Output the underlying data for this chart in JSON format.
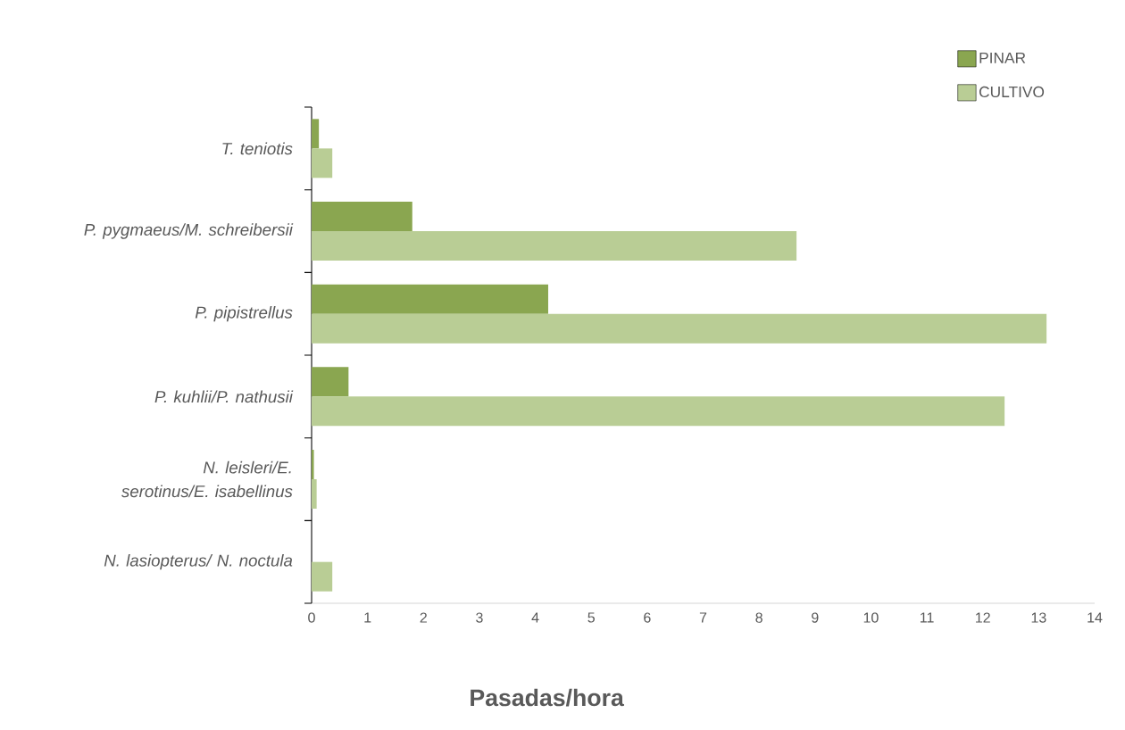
{
  "chart_data": {
    "type": "bar",
    "orientation": "horizontal",
    "xlabel": "Pasadas/hora",
    "categories": [
      "T. teniotis",
      "P. pygmaeus/M. schreibersii",
      "P. pipistrellus",
      "P. kuhlii/P. nathusii",
      "N. leisleri/E. serotinus/E. isabellinus",
      "N. lasiopterus/ N. noctula"
    ],
    "series": [
      {
        "name": "PINAR",
        "color": "#8aa650",
        "values": [
          0.13,
          1.8,
          4.23,
          0.66,
          0.04,
          0
        ]
      },
      {
        "name": "CULTIVO",
        "color": "#b9cd95",
        "values": [
          0.37,
          8.67,
          13.14,
          12.39,
          0.09,
          0.37
        ]
      }
    ],
    "xlim": [
      0,
      14
    ],
    "xticks": [
      0,
      1,
      2,
      3,
      4,
      5,
      6,
      7,
      8,
      9,
      10,
      11,
      12,
      13,
      14
    ],
    "grid": false,
    "legend": "top right"
  }
}
